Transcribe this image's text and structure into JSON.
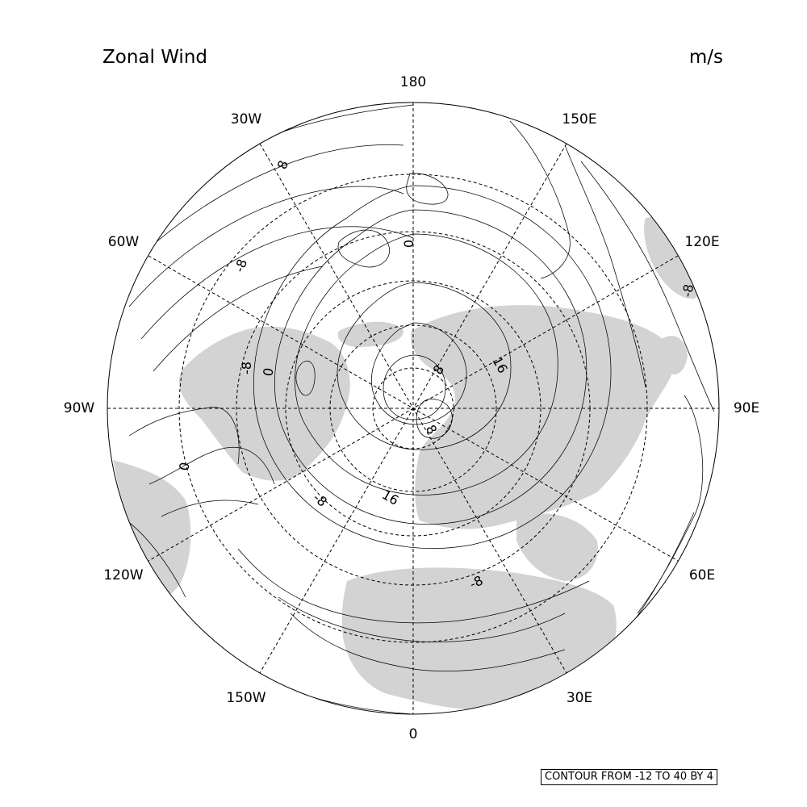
{
  "title": "Zonal Wind",
  "units": "m/s",
  "info_box": "CONTOUR FROM -12 TO 40 BY 4",
  "colors": {
    "land": "#d3d3d3",
    "line": "#000000",
    "background": "#ffffff"
  },
  "map": {
    "projection": "north polar stereographic",
    "longitude_labels": [
      "180",
      "150E",
      "120E",
      "90E",
      "60E",
      "30E",
      "0",
      "30W",
      "60W",
      "90W",
      "120W",
      "150W"
    ],
    "contour_labels": [
      "8",
      "-8",
      "0",
      "-8",
      "0",
      "8",
      "16",
      "8",
      "-8",
      "8",
      "16",
      "0",
      "-8",
      "-8"
    ]
  }
}
